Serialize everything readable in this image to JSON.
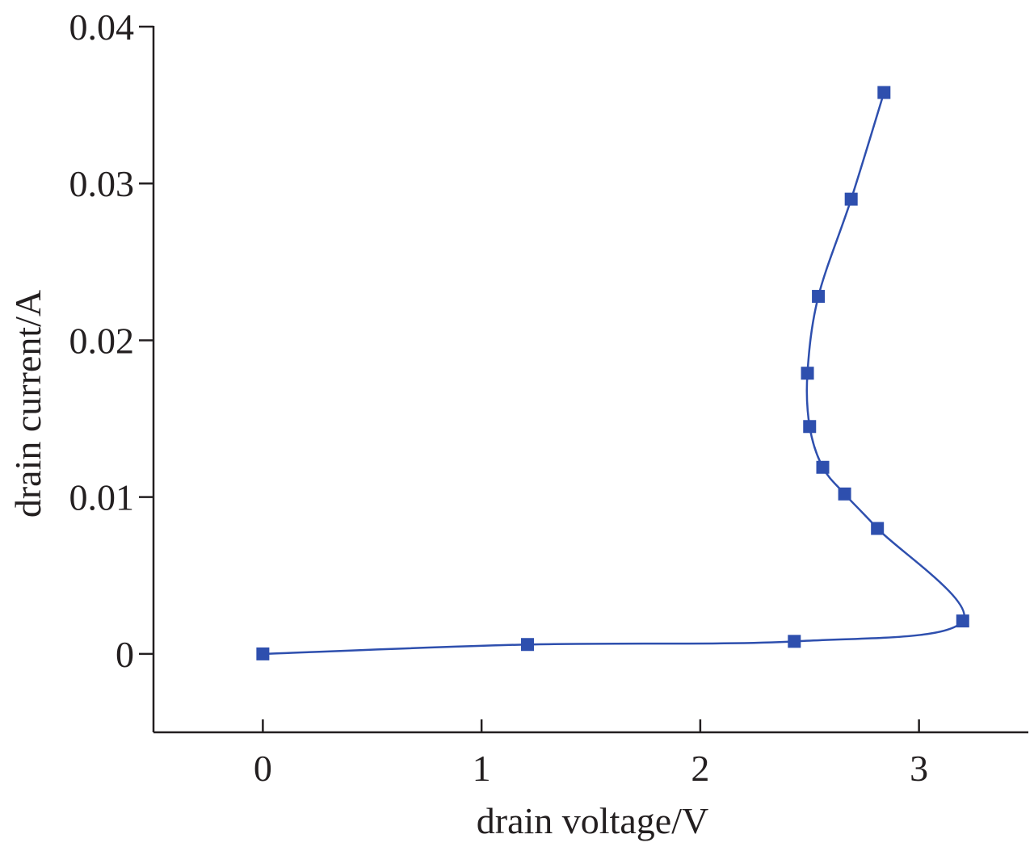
{
  "chart_data": {
    "type": "line",
    "title": "",
    "xlabel": "drain voltage/V",
    "ylabel": "drain current/A",
    "xlim": [
      -0.5,
      3.5
    ],
    "ylim": [
      -0.005,
      0.04
    ],
    "x_ticks": [
      0,
      1,
      2,
      3
    ],
    "x_tick_labels": [
      "0",
      "1",
      "2",
      "3"
    ],
    "y_ticks": [
      0,
      0.01,
      0.02,
      0.03,
      0.04
    ],
    "y_tick_labels": [
      "0",
      "0.01",
      "0.02",
      "0.03",
      "0.04"
    ],
    "grid": false,
    "legend": "none",
    "smooth": true,
    "marker": "square",
    "colors": {
      "series": "#2e4fae",
      "axis": "#231f20"
    },
    "series": [
      {
        "x": [
          0,
          1.21,
          2.43,
          3.2,
          2.81,
          2.66,
          2.56,
          2.5,
          2.49,
          2.54,
          2.69,
          2.84
        ],
        "y": [
          0,
          0.0006,
          0.0008,
          0.0021,
          0.008,
          0.0102,
          0.0119,
          0.0145,
          0.0179,
          0.0228,
          0.029,
          0.0358
        ]
      }
    ]
  }
}
